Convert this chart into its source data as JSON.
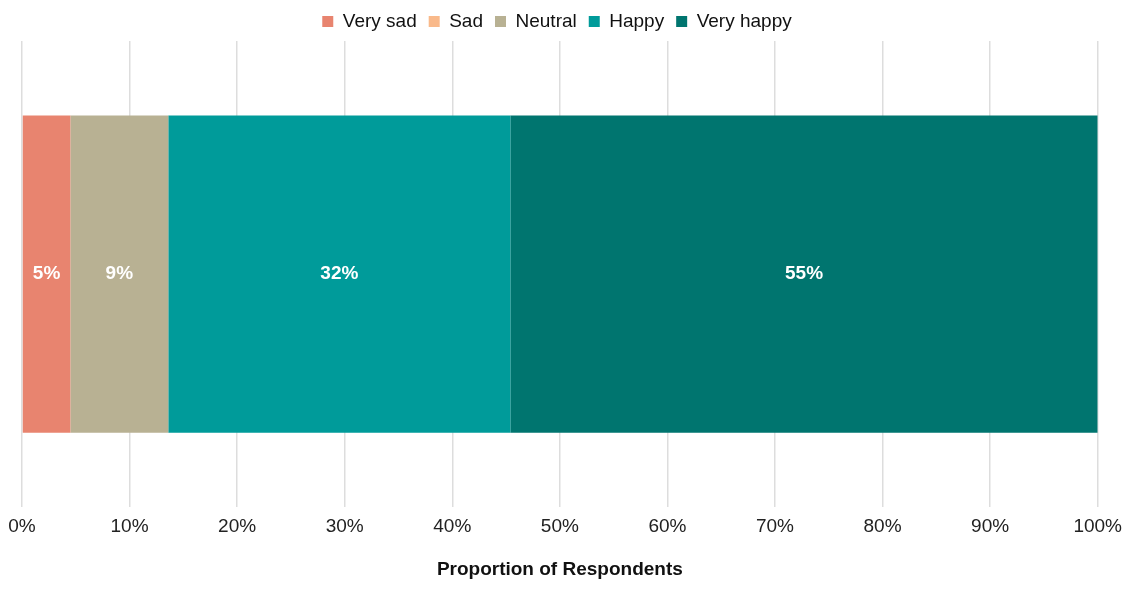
{
  "chart_data": {
    "type": "bar",
    "orientation": "horizontal",
    "stacked": true,
    "categories": [
      null
    ],
    "xlabel": "Proportion of Respondents",
    "xlim": [
      0,
      100
    ],
    "xticks": [
      {
        "value": 0,
        "label": "0%"
      },
      {
        "value": 10,
        "label": "10%"
      },
      {
        "value": 20,
        "label": "20%"
      },
      {
        "value": 30,
        "label": "30%"
      },
      {
        "value": 40,
        "label": "40%"
      },
      {
        "value": 50,
        "label": "50%"
      },
      {
        "value": 60,
        "label": "60%"
      },
      {
        "value": 70,
        "label": "70%"
      },
      {
        "value": 80,
        "label": "80%"
      },
      {
        "value": 90,
        "label": "90%"
      },
      {
        "value": 100,
        "label": "100%"
      }
    ],
    "series": [
      {
        "name": "Very sad",
        "color": "#e8846f",
        "values": [
          4.5
        ],
        "value_labels": [
          "5%"
        ]
      },
      {
        "name": "Sad",
        "color": "#f9b98a",
        "values": [
          0
        ],
        "value_labels": [
          null
        ]
      },
      {
        "name": "Neutral",
        "color": "#b8b193",
        "values": [
          9.1
        ],
        "value_labels": [
          "9%"
        ]
      },
      {
        "name": "Happy",
        "color": "#009b9a",
        "values": [
          31.8
        ],
        "value_labels": [
          "32%"
        ]
      },
      {
        "name": "Very happy",
        "color": "#00756f",
        "values": [
          54.6
        ],
        "value_labels": [
          "55%"
        ]
      }
    ],
    "grid": "x",
    "legend": "top",
    "tick_labels": "x"
  }
}
